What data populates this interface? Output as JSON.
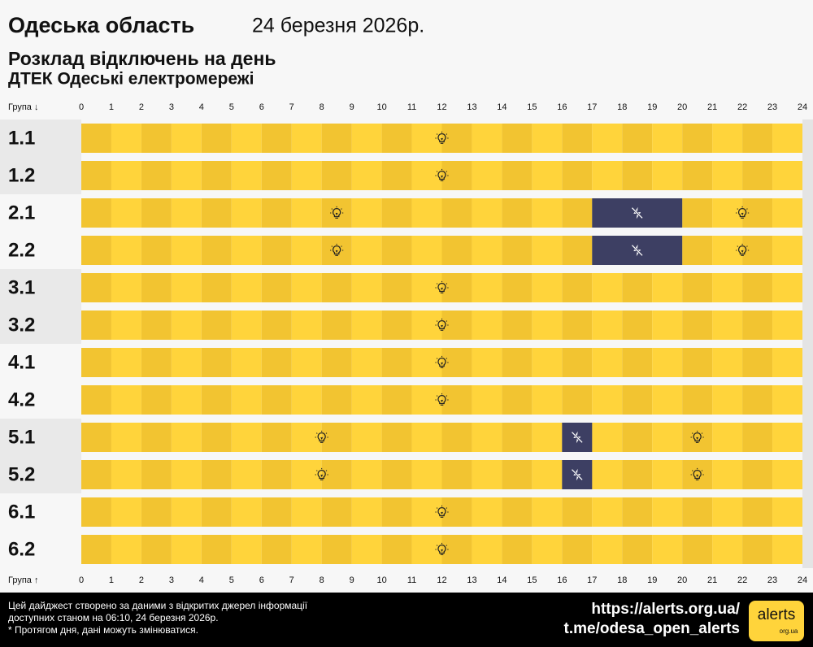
{
  "chart_data": {
    "type": "timeline",
    "title": "Одеська область",
    "date": "24 березня 2026р.",
    "subtitle": "Розклад відключень на день",
    "provider": "ДТЕК Одеські електромережі",
    "group_label_top": "Група ↓",
    "group_label_bottom": "Група ↑",
    "xlim": [
      0,
      24
    ],
    "xticks": [
      0,
      1,
      2,
      3,
      4,
      5,
      6,
      7,
      8,
      9,
      10,
      11,
      12,
      13,
      14,
      15,
      16,
      17,
      18,
      19,
      20,
      21,
      22,
      23,
      24
    ],
    "categories": [
      "1.1",
      "1.2",
      "2.1",
      "2.2",
      "3.1",
      "3.2",
      "4.1",
      "4.2",
      "5.1",
      "5.2",
      "6.1",
      "6.2"
    ],
    "outages": [
      [],
      [],
      [
        [
          17,
          20
        ]
      ],
      [
        [
          17,
          20
        ]
      ],
      [],
      [],
      [],
      [],
      [
        [
          16,
          17
        ]
      ],
      [
        [
          16,
          17
        ]
      ],
      [],
      []
    ],
    "on_colors": [
      "#f2c431",
      "#ffd43b"
    ],
    "off_color": "#3d3f63",
    "footer": {
      "lines": [
        "Цей дайджест створено за даними з відкритих джерел інформації",
        "доступних станом на 06:10, 24 березня 2026р.",
        "* Протягом дня, дані можуть змінюватися."
      ],
      "links": [
        "https://alerts.org.ua/",
        "t.me/odesa_open_alerts"
      ],
      "logo": "alerts",
      "logo_sub": "org.ua"
    }
  }
}
